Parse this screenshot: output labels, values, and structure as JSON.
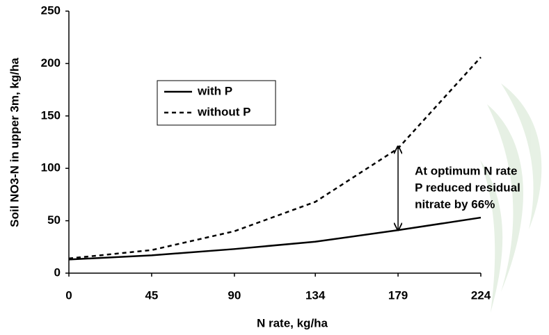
{
  "chart_data": {
    "type": "line",
    "x_label": "N rate, kg/ha",
    "y_label": "Soil NO3-N in upper  3m, kg/ha",
    "x": [
      0,
      45,
      90,
      134,
      179,
      224
    ],
    "series": [
      {
        "name": "with P",
        "color": "#000000",
        "dash": "solid",
        "values": [
          13,
          17,
          23,
          30,
          41,
          53
        ]
      },
      {
        "name": "without P",
        "color": "#000000",
        "dash": "dashed",
        "values": [
          14,
          22,
          40,
          68,
          119,
          206
        ]
      }
    ],
    "xlim": [
      0,
      224
    ],
    "xticks": [
      0,
      45,
      90,
      134,
      179,
      224
    ],
    "ylim": [
      0,
      250
    ],
    "yticks": [
      0,
      50,
      100,
      150,
      200,
      250
    ],
    "legend": "upper left",
    "grid": false,
    "annotation": {
      "lines": [
        "At optimum N rate",
        "P reduced residual",
        "nitrate by 66%"
      ],
      "x": 179,
      "from": 121,
      "to": 41
    }
  }
}
